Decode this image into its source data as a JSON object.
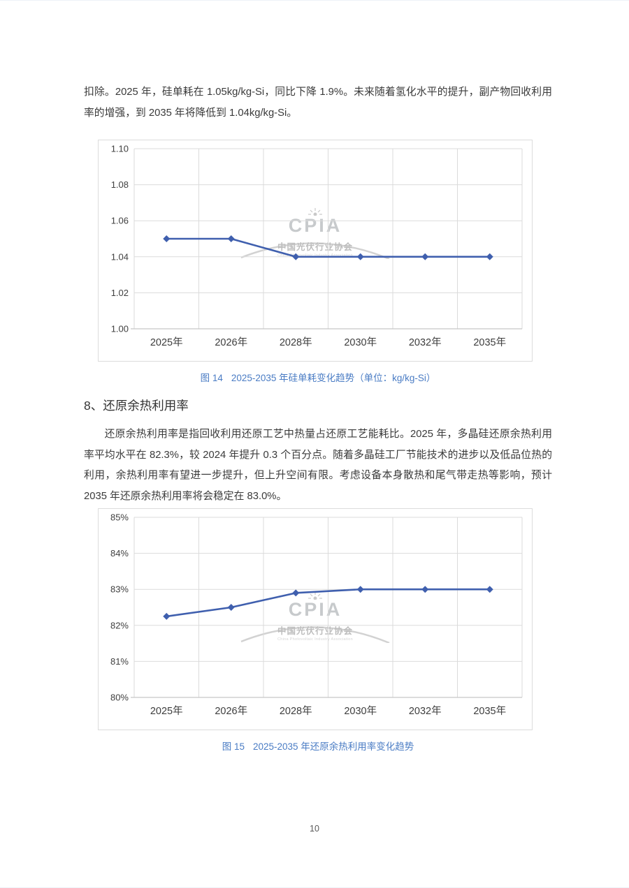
{
  "paragraphs": {
    "p1": "扣除。2025 年，硅单耗在 1.05kg/kg-Si，同比下降 1.9%。未来随着氢化水平的提升，副产物回收利用率的增强，到 2035 年将降低到 1.04kg/kg-Si。",
    "p2": "还原余热利用率是指回收利用还原工艺中热量占还原工艺能耗比。2025 年，多晶硅还原余热利用率平均水平在 82.3%，较 2024 年提升 0.3 个百分点。随着多晶硅工厂节能技术的进步以及低品位热的利用，余热利用率有望进一步提升，但上升空间有限。考虑设备本身散热和尾气带走热等影响，预计 2035 年还原余热利用率将会稳定在 83.0%。"
  },
  "heading": {
    "section8": "8、还原余热利用率"
  },
  "figures": {
    "fig14": {
      "label": "图 14",
      "title": "2025-2035 年硅单耗变化趋势（单位：kg/kg-Si）"
    },
    "fig15": {
      "label": "图 15",
      "title": "2025-2035 年还原余热利用率变化趋势"
    }
  },
  "watermark": {
    "acronym": "CPIA",
    "name_cn": "中国光伏行业协会",
    "name_en": "China Photovoltaic Industry Association"
  },
  "footer": {
    "page_number": "10"
  },
  "colors": {
    "line": "#3F5FAE",
    "grid": "#DBDBDB",
    "axis_line": "#C6C6C6",
    "axis_text": "#404040",
    "caption": "#4A7CC4",
    "body_text": "#3A3A3A"
  },
  "chart_data": [
    {
      "id": "fig14",
      "type": "line",
      "title": "图 14 2025-2035 年硅单耗变化趋势（单位：kg/kg-Si）",
      "categories": [
        "2025年",
        "2026年",
        "2028年",
        "2030年",
        "2032年",
        "2035年"
      ],
      "series": [
        {
          "values": [
            1.05,
            1.05,
            1.04,
            1.04,
            1.04,
            1.04
          ]
        }
      ],
      "ylim": [
        1.0,
        1.1
      ],
      "yticks": {
        "values": [
          1.0,
          1.02,
          1.04,
          1.06,
          1.08,
          1.1
        ],
        "labels": [
          "1.00",
          "1.02",
          "1.04",
          "1.06",
          "1.08",
          "1.10"
        ]
      },
      "xlabel": "",
      "ylabel": "kg/kg-Si",
      "grid": true,
      "legend": false,
      "marker": "diamond"
    },
    {
      "id": "fig15",
      "type": "line",
      "title": "图 15 2025-2035 年还原余热利用率变化趋势",
      "categories": [
        "2025年",
        "2026年",
        "2028年",
        "2030年",
        "2032年",
        "2035年"
      ],
      "series": [
        {
          "values": [
            82.25,
            82.5,
            82.9,
            83.0,
            83.0,
            83.0
          ]
        }
      ],
      "ylim": [
        80,
        85
      ],
      "yticks": {
        "values": [
          80,
          81,
          82,
          83,
          84,
          85
        ],
        "labels": [
          "80%",
          "81%",
          "82%",
          "83%",
          "84%",
          "85%"
        ]
      },
      "xlabel": "",
      "ylabel": "还原余热利用率",
      "grid": true,
      "legend": false,
      "marker": "diamond"
    }
  ]
}
